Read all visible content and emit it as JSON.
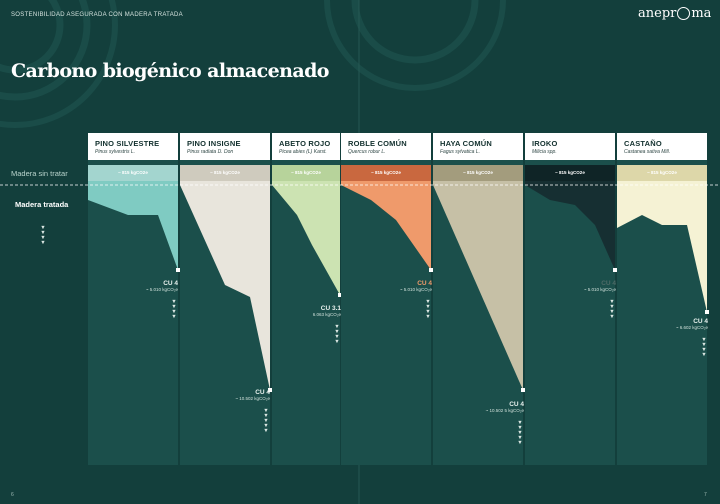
{
  "header": {
    "section": "SOSTENIBILIDAD ASEGURADA CON MADERA TRATADA",
    "logo_text_left": "anepr",
    "logo_text_right": "ma"
  },
  "page_title": "Carbono biogénico almacenado",
  "row_labels": {
    "untreated": "Madera sin tratar",
    "treated": "Madera tratada"
  },
  "colors": {
    "background": "#133f3c",
    "shaded_column": "#1b4f4b",
    "card": "#ffffff",
    "dashed_line": "#ffffff"
  },
  "species": [
    {
      "name": "PINO SILVESTRE",
      "latin": "Pinus sylvestris L.",
      "untreated": "~ 815 kgCO2e",
      "class": "CU 4",
      "treated": "~ 5.010 kgCO₂e",
      "color": "#7fcbc2",
      "pill": "#a3d5cf",
      "cu_color": "#e8f1ee"
    },
    {
      "name": "PINO INSIGNE",
      "latin": "Pinus radiata D. Don",
      "untreated": "~ 815 kgCO2e",
      "class": "CU 4",
      "treated": "~ 10.502 kgCO₂e",
      "color": "#e8e5dc",
      "pill": "#cfcbbe",
      "cu_color": "#e8f1ee"
    },
    {
      "name": "ABETO ROJO",
      "latin": "Picea abies (L) Karst.",
      "untreated": "~ 815 kgCO2e",
      "class": "CU 3.1",
      "treated": "6.063 kgCO₂e",
      "color": "#cce3b2",
      "pill": "#b7d39b",
      "cu_color": "#e8f1ee"
    },
    {
      "name": "ROBLE COMÚN",
      "latin": "Quercus robur L.",
      "untreated": "~ 815 kgCO2e",
      "class": "CU 4",
      "treated": "~ 5.010 kgCO₂e",
      "color": "#ef9a6b",
      "pill": "#c9683f",
      "cu_color": "#ef9a6b"
    },
    {
      "name": "HAYA COMÚN",
      "latin": "Fagus sylvatica L.",
      "untreated": "~ 815 kgCO2e",
      "class": "CU 4",
      "treated": "~ 10.502 5 kgCO₂e",
      "color": "#c6c0a6",
      "pill": "#a39c7d",
      "cu_color": "#e8f1ee"
    },
    {
      "name": "IROKO",
      "latin": "Milicia spp.",
      "untreated": "~ 815 kgCO2e",
      "class": "CU 4",
      "treated": "~ 5.010 kgCO₂e",
      "color": "#162f32",
      "pill": "#0f2426",
      "cu_color": "#4d6a66"
    },
    {
      "name": "CASTAÑO",
      "latin": "Castanea sativa Mill.",
      "untreated": "~ 815 kgCO2e",
      "class": "CU 4",
      "treated": "~ 6.602 kgCO₂e",
      "color": "#f5f2d4",
      "pill": "#ddd7a9",
      "cu_color": "#e8f1ee"
    }
  ],
  "arrows": "▼",
  "page_numbers": {
    "left": "6",
    "right": "7"
  }
}
